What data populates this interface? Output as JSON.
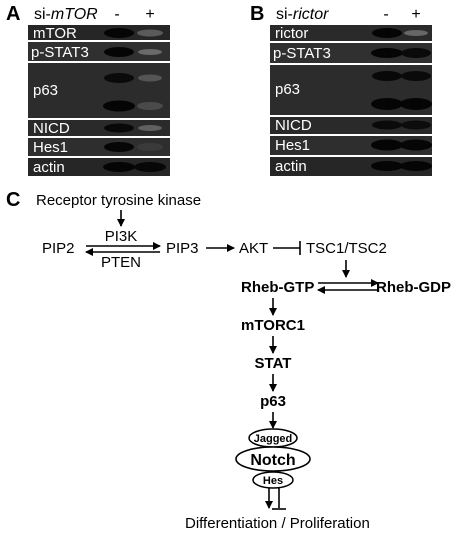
{
  "panel_a": {
    "letter": "A",
    "si_prefix": "si-",
    "si_target": "mTOR",
    "lane_minus": "-",
    "lane_plus": "+",
    "bands": [
      "mTOR",
      "p-STAT3",
      "p63",
      "NICD",
      "Hes1",
      "actin"
    ]
  },
  "panel_b": {
    "letter": "B",
    "si_prefix": "si-",
    "si_target": "rictor",
    "lane_minus": "-",
    "lane_plus": "+",
    "bands": [
      "rictor",
      "p-STAT3",
      "p63",
      "NICD",
      "Hes1",
      "actin"
    ]
  },
  "panel_c": {
    "letter": "C",
    "rtk": "Receptor tyrosine kinase",
    "pip2": "PIP2",
    "pi3k": "PI3K",
    "pten": "PTEN",
    "pip3": "PIP3",
    "akt": "AKT",
    "tsc": "TSC1/TSC2",
    "rheb_gtp": "Rheb-GTP",
    "rheb_gdp": "Rheb-GDP",
    "mtorc1": "mTORC1",
    "stat": "STAT",
    "p63": "p63",
    "jagged": "Jagged",
    "notch": "Notch",
    "hes": "Hes",
    "outcome": "Differentiation / Proliferation"
  }
}
